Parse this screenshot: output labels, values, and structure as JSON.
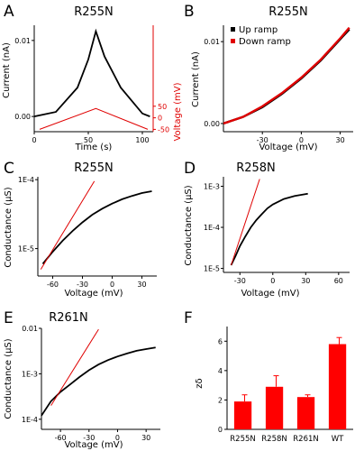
{
  "chart_data": [
    {
      "id": "A",
      "panel_label": "A",
      "type": "line",
      "title": "R255N",
      "xlabel": "Time (s)",
      "ylabel": "Current (nA)",
      "ylabel2": "Voltage (mV)",
      "xlim": [
        0,
        110
      ],
      "ylim": [
        -0.002,
        0.012
      ],
      "ylim2": [
        -60,
        400
      ],
      "x_ticks": [
        0,
        50,
        100
      ],
      "y_ticks": [
        0.0,
        0.01
      ],
      "y_tick_labels": [
        "0.00",
        "0.01"
      ],
      "y2_ticks": [
        -50,
        0,
        50
      ],
      "y2_tick_labels": [
        "-50",
        "0",
        "50"
      ],
      "series": [
        {
          "values_x": [
            0,
            20,
            40,
            50,
            57,
            65,
            80,
            100,
            107
          ],
          "values_y": [
            0.0,
            0.0006,
            0.0038,
            0.0075,
            0.0112,
            0.0079,
            0.0038,
            0.0004,
            0.0
          ],
          "color": "#000000"
        },
        {
          "values_x": [
            5,
            57,
            105
          ],
          "values_y": [
            -50,
            40,
            -50
          ],
          "axis": "right",
          "color": "#e00000"
        }
      ]
    },
    {
      "id": "B",
      "panel_label": "B",
      "type": "scatter",
      "title": "R255N",
      "xlabel": "Voltage (mV)",
      "ylabel": "Current (nA)",
      "xlim": [
        -60,
        40
      ],
      "ylim": [
        -0.001,
        0.012
      ],
      "x_ticks": [
        -30,
        0,
        30
      ],
      "y_ticks": [
        0.0,
        0.01
      ],
      "y_tick_labels": [
        "0.00",
        "0.01"
      ],
      "legend_position": "top-left",
      "series": [
        {
          "name": "Up ramp",
          "color": "#000000",
          "values_x": [
            -60,
            -45,
            -30,
            -15,
            0,
            15,
            30,
            37
          ],
          "values_y": [
            0.0,
            0.0008,
            0.002,
            0.0036,
            0.0055,
            0.0077,
            0.0103,
            0.0115
          ]
        },
        {
          "name": "Down ramp",
          "color": "#e00000",
          "values_x": [
            -60,
            -45,
            -30,
            -15,
            0,
            15,
            30,
            37
          ],
          "values_y": [
            0.0,
            0.0008,
            0.0021,
            0.0037,
            0.0056,
            0.0078,
            0.0104,
            0.0117
          ]
        }
      ]
    },
    {
      "id": "C",
      "panel_label": "C",
      "type": "line",
      "title": "R255N",
      "xlabel": "Voltage (mV)",
      "ylabel": "Conductance (µS)",
      "yscale": "log",
      "xlim": [
        -75,
        45
      ],
      "ylim": [
        4e-06,
        0.00011
      ],
      "x_ticks": [
        -60,
        -30,
        0,
        30
      ],
      "y_ticks": [
        1e-05,
        0.0001
      ],
      "y_tick_labels": [
        "1E-5",
        "1E-4"
      ],
      "series": [
        {
          "color": "#000000",
          "values_x": [
            -70,
            -60,
            -50,
            -40,
            -30,
            -20,
            -10,
            0,
            10,
            20,
            30,
            40
          ],
          "values_y": [
            6e-06,
            9e-06,
            1.3e-05,
            1.8e-05,
            2.4e-05,
            3.1e-05,
            3.8e-05,
            4.5e-05,
            5.2e-05,
            5.8e-05,
            6.4e-05,
            6.8e-05
          ]
        },
        {
          "color": "#e00000",
          "values_x": [
            -72,
            -18
          ],
          "values_y": [
            5e-06,
            9.5e-05
          ]
        }
      ]
    },
    {
      "id": "D",
      "panel_label": "D",
      "type": "line",
      "title": "R258N",
      "xlabel": "Voltage (mV)",
      "ylabel": "Conductance (µS)",
      "yscale": "log",
      "xlim": [
        -45,
        70
      ],
      "ylim": [
        8e-06,
        0.0017
      ],
      "x_ticks": [
        -30,
        0,
        30,
        60
      ],
      "y_ticks": [
        1e-05,
        0.0001,
        0.001
      ],
      "y_tick_labels": [
        "1E-5",
        "1E-4",
        "1E-3"
      ],
      "series": [
        {
          "color": "#000000",
          "values_x": [
            -38,
            -34,
            -30,
            -25,
            -20,
            -15,
            -10,
            -5,
            0,
            10,
            20,
            32
          ],
          "values_y": [
            1.2e-05,
            2e-05,
            3.5e-05,
            6e-05,
            0.0001,
            0.00015,
            0.00021,
            0.00029,
            0.00036,
            0.00049,
            0.00058,
            0.00066
          ]
        },
        {
          "color": "#e00000",
          "values_x": [
            -38,
            -12
          ],
          "values_y": [
            1.2e-05,
            0.0015
          ]
        }
      ]
    },
    {
      "id": "E",
      "panel_label": "E",
      "type": "line",
      "title": "R261N",
      "xlabel": "Voltage (mV)",
      "ylabel": "Conductance (µS)",
      "yscale": "log",
      "xlim": [
        -80,
        45
      ],
      "ylim": [
        6e-05,
        0.01
      ],
      "x_ticks": [
        -60,
        -30,
        0,
        30
      ],
      "y_ticks": [
        0.0001,
        0.001,
        0.01
      ],
      "y_tick_labels": [
        "1E-4",
        "1E-3",
        "0.01"
      ],
      "series": [
        {
          "color": "#000000",
          "values_x": [
            -80,
            -70,
            -60,
            -50,
            -40,
            -30,
            -20,
            -10,
            0,
            10,
            20,
            30,
            40
          ],
          "values_y": [
            0.00012,
            0.00025,
            0.0004,
            0.00058,
            0.00085,
            0.0012,
            0.0016,
            0.002,
            0.0024,
            0.0028,
            0.0032,
            0.0035,
            0.0038
          ]
        },
        {
          "color": "#e00000",
          "values_x": [
            -70,
            -20
          ],
          "values_y": [
            0.0002,
            0.0095
          ]
        }
      ]
    },
    {
      "id": "F",
      "panel_label": "F",
      "type": "bar",
      "title": "",
      "xlabel": "",
      "ylabel": "zδ",
      "ylim": [
        0,
        7
      ],
      "y_ticks": [
        0,
        2,
        4,
        6
      ],
      "categories": [
        "R255N",
        "R258N",
        "R261N",
        "WT"
      ],
      "values": [
        1.9,
        2.9,
        2.2,
        5.8
      ],
      "errors": [
        0.45,
        0.75,
        0.15,
        0.45
      ],
      "color": "#ff0000"
    }
  ],
  "legend": {
    "up_label": "Up ramp",
    "down_label": "Down ramp"
  }
}
